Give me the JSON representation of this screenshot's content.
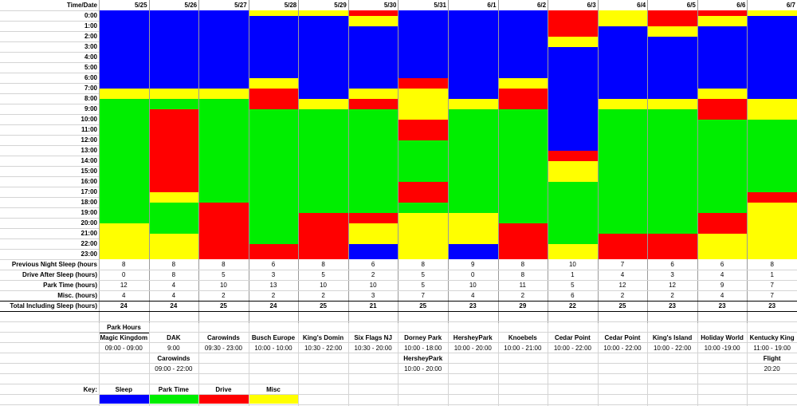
{
  "header_label": "Time/Date",
  "dates": [
    "5/25",
    "5/26",
    "5/27",
    "5/28",
    "5/29",
    "5/30",
    "5/31",
    "6/1",
    "6/2",
    "6/3",
    "6/4",
    "6/5",
    "6/6",
    "6/7"
  ],
  "hours": [
    "0:00",
    "1:00",
    "2:00",
    "3:00",
    "4:00",
    "5:00",
    "6:00",
    "7:00",
    "8:00",
    "9:00",
    "10:00",
    "11:00",
    "12:00",
    "13:00",
    "14:00",
    "15:00",
    "16:00",
    "17:00",
    "18:00",
    "19:00",
    "20:00",
    "21:00",
    "22:00",
    "23:00"
  ],
  "colors": {
    "S": "#0000ff",
    "P": "#00ee00",
    "D": "#ff0000",
    "M": "#ffff00"
  },
  "schedule": [
    [
      "S",
      0,
      8
    ],
    [
      "M",
      8,
      9
    ],
    [
      "P",
      9,
      20.5
    ],
    [
      "M",
      20.5,
      24
    ]
  ],
  "days": [
    [
      [
        "S",
        0,
        7.5
      ],
      [
        "M",
        7.5,
        8.5
      ],
      [
        "P",
        8.5,
        20.5
      ],
      [
        "M",
        20.5,
        24
      ]
    ],
    [
      [
        "S",
        0,
        7.5
      ],
      [
        "M",
        7.5,
        8.5
      ],
      [
        "P",
        8.5,
        9.5
      ],
      [
        "D",
        9.5,
        17.5
      ],
      [
        "M",
        17.5,
        18.5
      ],
      [
        "P",
        18.5,
        21.5
      ],
      [
        "M",
        21.5,
        24
      ]
    ],
    [
      [
        "S",
        0,
        7.5
      ],
      [
        "M",
        7.5,
        8.5
      ],
      [
        "P",
        8.5,
        18.5
      ],
      [
        "D",
        18.5,
        24
      ]
    ],
    [
      [
        "M",
        0,
        0.5
      ],
      [
        "S",
        0,
        0
      ],
      [
        "S",
        0.5,
        6.5
      ],
      [
        "M",
        6.5,
        7.5
      ],
      [
        "D",
        7.5,
        9.5
      ],
      [
        "P",
        9.5,
        22.5
      ],
      [
        "D",
        22.5,
        24
      ]
    ],
    [
      [
        "M",
        0,
        0.5
      ],
      [
        "S",
        0.5,
        8.5
      ],
      [
        "M",
        8.5,
        9.5
      ],
      [
        "P",
        9.5,
        19.5
      ],
      [
        "D",
        19.5,
        24
      ]
    ],
    [
      [
        "D",
        0,
        0.5
      ],
      [
        "M",
        0.5,
        1.5
      ],
      [
        "S",
        1.5,
        7.5
      ],
      [
        "M",
        7.5,
        8.5
      ],
      [
        "D",
        8.5,
        9.5
      ],
      [
        "P",
        9.5,
        19.5
      ],
      [
        "D",
        19.5,
        20.5
      ],
      [
        "M",
        20.5,
        22.5
      ],
      [
        "S",
        22.5,
        24
      ]
    ],
    [
      [
        "S",
        0,
        6.5
      ],
      [
        "D",
        6.5,
        7.5
      ],
      [
        "M",
        7.5,
        10.5
      ],
      [
        "D",
        10.5,
        12.5
      ],
      [
        "P",
        12.5,
        16.5
      ],
      [
        "D",
        16.5,
        18.5
      ],
      [
        "P",
        18.5,
        19.5
      ],
      [
        "M",
        19.5,
        24
      ]
    ],
    [
      [
        "S",
        0,
        8.5
      ],
      [
        "M",
        8.5,
        9.5
      ],
      [
        "P",
        9.5,
        19.5
      ],
      [
        "M",
        19.5,
        22.5
      ],
      [
        "S",
        22.5,
        24
      ]
    ],
    [
      [
        "S",
        0,
        6.5
      ],
      [
        "M",
        6.5,
        7.5
      ],
      [
        "D",
        7.5,
        9.5
      ],
      [
        "P",
        9.5,
        20.5
      ],
      [
        "D",
        20.5,
        24
      ]
    ],
    [
      [
        "D",
        0,
        2.5
      ],
      [
        "M",
        2.5,
        3.5
      ],
      [
        "S",
        3.5,
        13.5
      ],
      [
        "D",
        13.5,
        14.5
      ],
      [
        "M",
        14.5,
        16.5
      ],
      [
        "P",
        16.5,
        22.5
      ],
      [
        "M",
        22.5,
        24
      ]
    ],
    [
      [
        "M",
        0,
        1.5
      ],
      [
        "S",
        1.5,
        8.5
      ],
      [
        "M",
        8.5,
        9.5
      ],
      [
        "P",
        9.5,
        21.5
      ],
      [
        "D",
        21.5,
        24
      ]
    ],
    [
      [
        "D",
        0,
        1.5
      ],
      [
        "M",
        1.5,
        2.5
      ],
      [
        "S",
        2.5,
        8.5
      ],
      [
        "M",
        8.5,
        9.5
      ],
      [
        "P",
        9.5,
        21.5
      ],
      [
        "D",
        21.5,
        24
      ]
    ],
    [
      [
        "D",
        0,
        0.5
      ],
      [
        "M",
        0.5,
        1.5
      ],
      [
        "S",
        1.5,
        7.5
      ],
      [
        "M",
        7.5,
        8.5
      ],
      [
        "D",
        8.5,
        10.5
      ],
      [
        "P",
        10.5,
        19.5
      ],
      [
        "D",
        19.5,
        21.5
      ],
      [
        "M",
        21.5,
        24
      ]
    ],
    [
      [
        "M",
        0,
        0.5
      ],
      [
        "S",
        0.5,
        8.5
      ],
      [
        "M",
        8.5,
        10.5
      ],
      [
        "P",
        10.5,
        17.5
      ],
      [
        "D",
        17.5,
        18.5
      ],
      [
        "M",
        18.5,
        24
      ]
    ]
  ],
  "summary_rows": [
    {
      "label": "Previous Night Sleep (hours",
      "values": [
        "8",
        "8",
        "8",
        "6",
        "8",
        "6",
        "8",
        "9",
        "8",
        "10",
        "7",
        "6",
        "6",
        "8"
      ]
    },
    {
      "label": "Drive After Sleep (hours)",
      "values": [
        "0",
        "8",
        "5",
        "3",
        "5",
        "2",
        "5",
        "0",
        "8",
        "1",
        "4",
        "3",
        "4",
        "1"
      ]
    },
    {
      "label": "Park Time (hours)",
      "values": [
        "12",
        "4",
        "10",
        "13",
        "10",
        "10",
        "5",
        "10",
        "11",
        "5",
        "12",
        "12",
        "9",
        "7"
      ]
    },
    {
      "label": "Misc. (hours)",
      "values": [
        "4",
        "4",
        "2",
        "2",
        "2",
        "3",
        "7",
        "4",
        "2",
        "6",
        "2",
        "2",
        "4",
        "7"
      ]
    }
  ],
  "total_row": {
    "label": "Total Including Sleep (hours)",
    "values": [
      "24",
      "24",
      "25",
      "24",
      "25",
      "21",
      "25",
      "23",
      "29",
      "22",
      "25",
      "23",
      "23",
      "23"
    ]
  },
  "park_hours_label": "Park Hours",
  "parks": [
    {
      "name": "Magic Kingdom",
      "hours": "09:00 - 09:00"
    },
    {
      "name": "DAK",
      "hours": "9:00"
    },
    {
      "name": "Carowinds",
      "hours": "09:30 - 23:00"
    },
    {
      "name": "Busch Europe",
      "hours": "10:00 - 10:00"
    },
    {
      "name": "King's Domin",
      "hours": "10:30 - 22:00"
    },
    {
      "name": "Six Flags NJ",
      "hours": "10:30 - 20:00"
    },
    {
      "name": "Dorney Park",
      "hours": "10:00 - 18:00"
    },
    {
      "name": "HersheyPark",
      "hours": "10:00 - 20:00"
    },
    {
      "name": "Knoebels",
      "hours": "10:00 - 21:00"
    },
    {
      "name": "Cedar Point",
      "hours": "10:00 - 22:00"
    },
    {
      "name": "Cedar Point",
      "hours": "10:00 - 22:00"
    },
    {
      "name": "King's Island",
      "hours": "10:00 - 22:00"
    },
    {
      "name": "Holiday World",
      "hours": "10:00 -19:00"
    },
    {
      "name": "Kentucky King",
      "hours": "11:00 - 19:00"
    }
  ],
  "second_parks": [
    {
      "col": 1,
      "name": "Carowinds",
      "hours": "09:00 - 22:00"
    },
    {
      "col": 6,
      "name": "HersheyPark",
      "hours": "10:00 - 20:00"
    },
    {
      "col": 13,
      "name": "Flight",
      "hours": "20:20"
    }
  ],
  "key_label": "Key:",
  "key": [
    {
      "label": "Sleep",
      "color": "#0000ff"
    },
    {
      "label": "Park Time",
      "color": "#00ee00"
    },
    {
      "label": "Drive",
      "color": "#ff0000"
    },
    {
      "label": "Misc",
      "color": "#ffff00"
    }
  ]
}
